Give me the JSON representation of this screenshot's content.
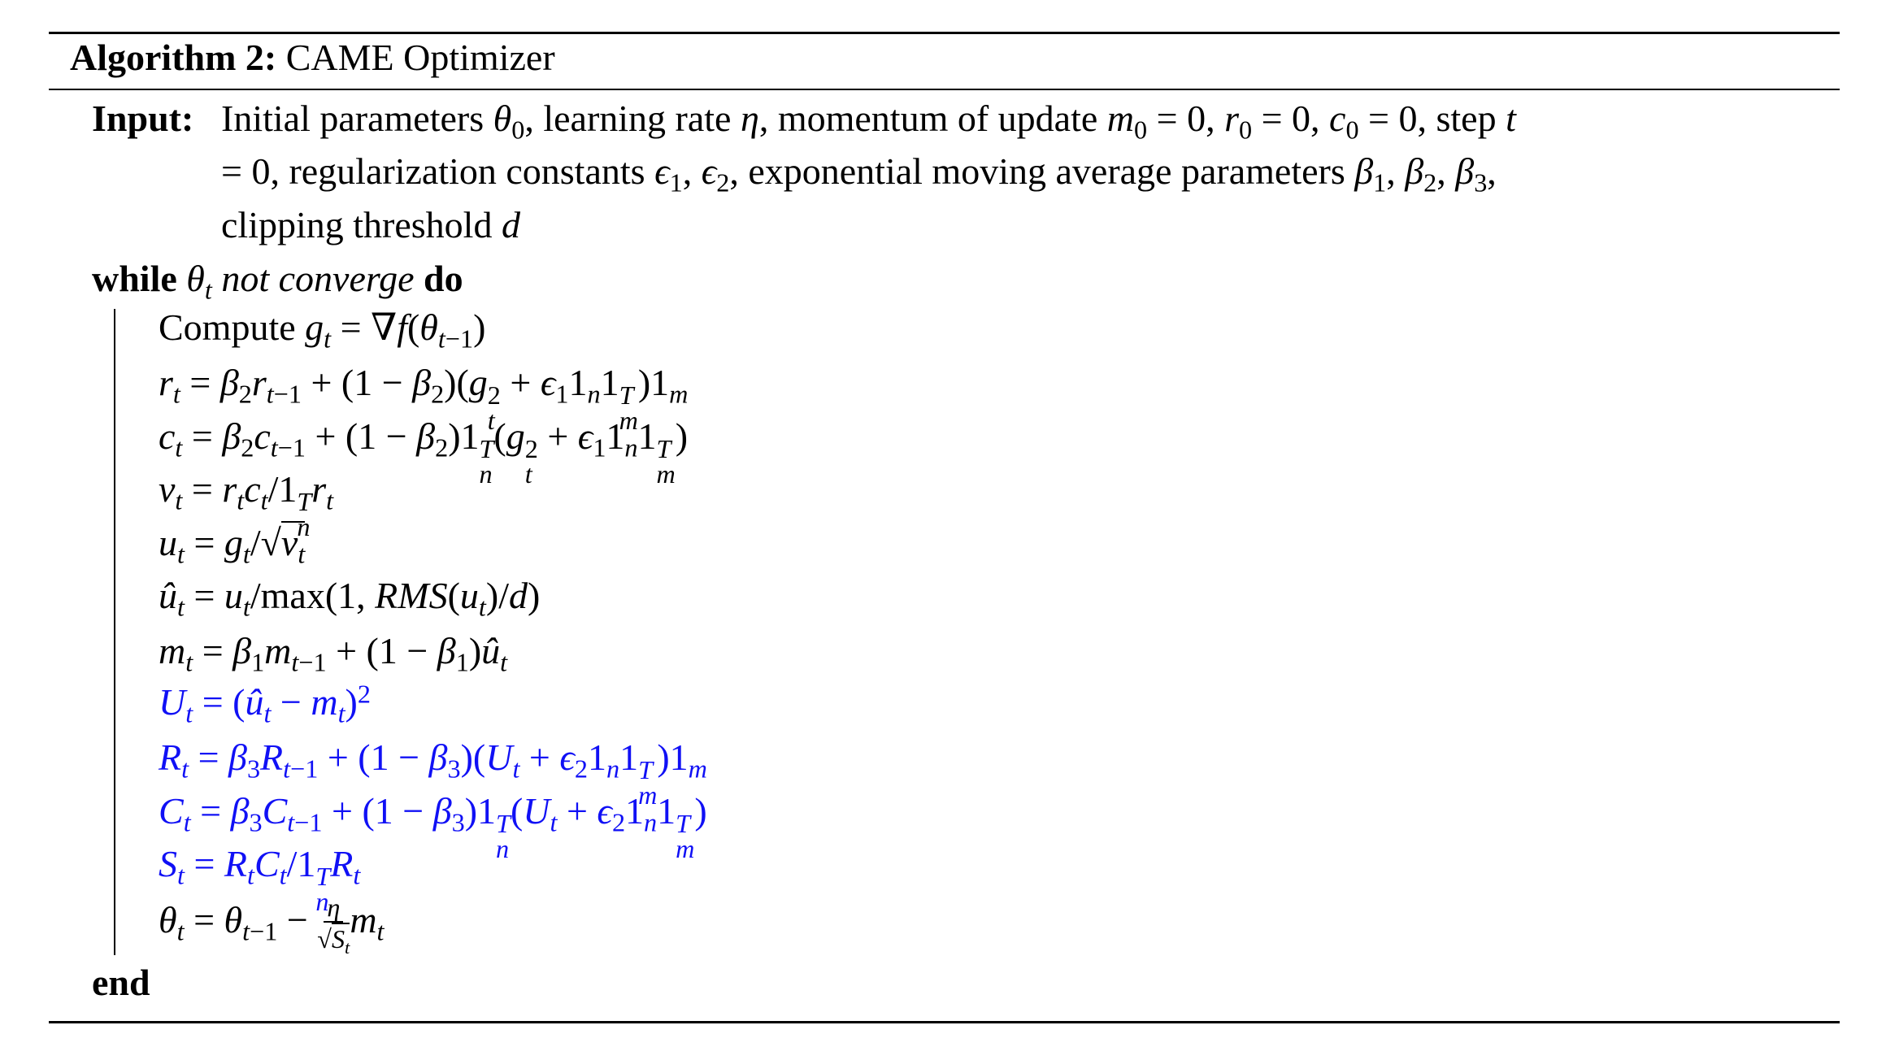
{
  "algorithm": {
    "label": "Algorithm 2:",
    "title": "CAME Optimizer",
    "input_label": "Input:",
    "input_lines": [
      "Initial parameters $θ_0$, learning rate $η$, momentum of update $m_0 = 0, r_0 = 0, c_0 = 0$, step $t$",
      "= 0, regularization constants $ϵ_1, ϵ_2$, exponential moving average parameters $β_1, β_2, β_3$,",
      "clipping threshold $d$"
    ],
    "while_keyword": "while",
    "while_condition_var": "$θ_t$",
    "while_condition_text": "not converge",
    "do_keyword": "do",
    "body": [
      {
        "text": "Compute $g_t = ∇f(θ_{t−1})$",
        "highlight": false
      },
      {
        "text": "$r_t = β_2r_{t−1} + (1 − β_2)(g_t^2 + ϵ_11_n1_m^T)1_m$",
        "highlight": false
      },
      {
        "text": "$c_t = β_2c_{t−1} + (1 − β_2)1_n^T(g_t^2 + ϵ_11_n1_m^T)$",
        "highlight": false
      },
      {
        "text": "$v_t = r_tc_t/1_n^Tr_t$",
        "highlight": false
      },
      {
        "text": "$u_t = g_t/\\sqrt{v_t}$",
        "highlight": false
      },
      {
        "text": "$û_t = u_t/$max$(1, RMS(u_t)/d)$",
        "highlight": false
      },
      {
        "text": "$m_t = β_1m_{t−1} + (1 − β_1)û_t$",
        "highlight": false
      },
      {
        "text": "$U_t = (û_t − m_t)^2$",
        "highlight": true
      },
      {
        "text": "$R_t = β_3R_{t−1} + (1 − β_3)(U_t + ϵ_21_n1_m^T)1_m$",
        "highlight": true
      },
      {
        "text": "$C_t = β_3C_{t−1} + (1 − β_3)1_n^T(U_t + ϵ_21_n1_m^T)$",
        "highlight": true
      },
      {
        "text": "$S_t = R_tC_t/1_n^TR_t$",
        "highlight": true
      },
      {
        "text": "$θ_t = θ_{t−1} − \\frac{η}{\\sqrt{S_t}}m_t$",
        "highlight": false
      }
    ],
    "end_keyword": "end"
  },
  "colors": {
    "text": "#000000",
    "highlight": "#1010f5"
  }
}
